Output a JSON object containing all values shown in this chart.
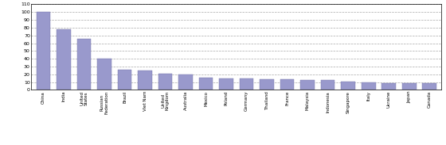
{
  "categories": [
    "China",
    "India",
    "United\nStates",
    "Russian\nFederation",
    "Brazil",
    "Viet Nam",
    "United\nKingdom",
    "Australia",
    "Mexico",
    "Poland",
    "Germany",
    "Thailand",
    "France",
    "Malaysia",
    "Indonesia",
    "Singapore",
    "Italy",
    "Ukraine",
    "Japan",
    "Canada"
  ],
  "values": [
    100,
    78,
    66,
    40,
    26,
    25,
    21,
    20,
    16,
    15,
    15,
    14,
    14,
    13,
    13,
    11,
    10,
    9,
    9,
    9
  ],
  "bar_color": "#9999cc",
  "bar_edge_color": "#7777aa",
  "ylim": [
    0,
    110
  ],
  "yticks": [
    0,
    10,
    20,
    30,
    40,
    50,
    60,
    70,
    80,
    90,
    100,
    110
  ],
  "background_color": "#ffffff",
  "grid_color": "#aaaaaa",
  "ytick_fontsize": 4.5,
  "xtick_fontsize": 4.0
}
